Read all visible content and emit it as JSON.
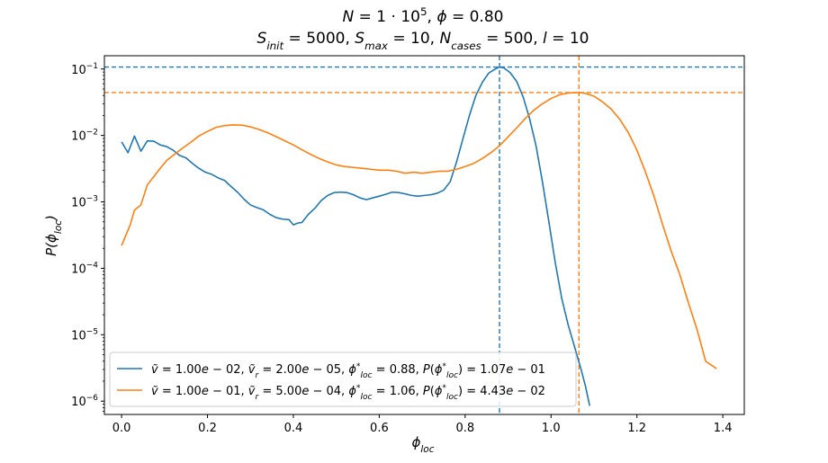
{
  "chart_data": {
    "type": "line",
    "title_line1": "N = 1 · 10⁵, ϕ = 0.80",
    "title_line2": "S_init = 5000, S_max = 10, N_cases = 500, l = 10",
    "xlabel": "ϕ_loc",
    "ylabel": "P(ϕ_loc)",
    "xlim": [
      -0.04,
      1.45
    ],
    "ylim_log10": [
      -6.2,
      -0.8
    ],
    "yscale": "log",
    "grid": false,
    "legend_position": "lower-left",
    "x_ticks": [
      0.0,
      0.2,
      0.4,
      0.6,
      0.8,
      1.0,
      1.2,
      1.4
    ],
    "x_tick_labels": [
      "0.0",
      "0.2",
      "0.4",
      "0.6",
      "0.8",
      "1.0",
      "1.2",
      "1.4"
    ],
    "y_ticks_log10": [
      -1,
      -2,
      -3,
      -4,
      -5,
      -6
    ],
    "y_tick_labels": [
      "10⁻¹",
      "10⁻²",
      "10⁻³",
      "10⁻⁴",
      "10⁻⁵",
      "10⁻⁶"
    ],
    "series": [
      {
        "name": "ṽ = 1.00e − 02, ṽr = 2.00e − 05, ϕ*loc = 0.88, P(ϕ*loc) = 1.07e − 01",
        "color": "#1f77b4",
        "peak_x": 0.88,
        "peak_y": 0.107,
        "points": [
          [
            0.0,
            0.008
          ],
          [
            0.015,
            0.0055
          ],
          [
            0.03,
            0.0098
          ],
          [
            0.045,
            0.0058
          ],
          [
            0.06,
            0.0083
          ],
          [
            0.075,
            0.0082
          ],
          [
            0.09,
            0.0072
          ],
          [
            0.105,
            0.0068
          ],
          [
            0.12,
            0.006
          ],
          [
            0.135,
            0.005
          ],
          [
            0.15,
            0.0046
          ],
          [
            0.165,
            0.0038
          ],
          [
            0.18,
            0.0032
          ],
          [
            0.195,
            0.0028
          ],
          [
            0.21,
            0.0026
          ],
          [
            0.225,
            0.0023
          ],
          [
            0.24,
            0.0021
          ],
          [
            0.255,
            0.0017
          ],
          [
            0.27,
            0.0014
          ],
          [
            0.285,
            0.0011
          ],
          [
            0.3,
            0.0009
          ],
          [
            0.315,
            0.00082
          ],
          [
            0.33,
            0.00076
          ],
          [
            0.345,
            0.00065
          ],
          [
            0.36,
            0.00058
          ],
          [
            0.375,
            0.00055
          ],
          [
            0.39,
            0.00054
          ],
          [
            0.4,
            0.00045
          ],
          [
            0.41,
            0.00048
          ],
          [
            0.42,
            0.00049
          ],
          [
            0.435,
            0.00065
          ],
          [
            0.45,
            0.0008
          ],
          [
            0.465,
            0.00105
          ],
          [
            0.48,
            0.00125
          ],
          [
            0.495,
            0.00138
          ],
          [
            0.51,
            0.0014
          ],
          [
            0.525,
            0.00138
          ],
          [
            0.54,
            0.00128
          ],
          [
            0.555,
            0.00115
          ],
          [
            0.57,
            0.00108
          ],
          [
            0.585,
            0.00115
          ],
          [
            0.6,
            0.00122
          ],
          [
            0.615,
            0.0013
          ],
          [
            0.63,
            0.0014
          ],
          [
            0.645,
            0.00138
          ],
          [
            0.66,
            0.00132
          ],
          [
            0.675,
            0.00125
          ],
          [
            0.69,
            0.00122
          ],
          [
            0.705,
            0.00125
          ],
          [
            0.72,
            0.00128
          ],
          [
            0.735,
            0.00135
          ],
          [
            0.75,
            0.0015
          ],
          [
            0.765,
            0.002
          ],
          [
            0.78,
            0.004
          ],
          [
            0.795,
            0.009
          ],
          [
            0.81,
            0.02
          ],
          [
            0.825,
            0.04
          ],
          [
            0.84,
            0.063
          ],
          [
            0.855,
            0.087
          ],
          [
            0.87,
            0.1
          ],
          [
            0.88,
            0.107
          ],
          [
            0.89,
            0.104
          ],
          [
            0.905,
            0.088
          ],
          [
            0.92,
            0.065
          ],
          [
            0.935,
            0.038
          ],
          [
            0.95,
            0.018
          ],
          [
            0.965,
            0.007
          ],
          [
            0.98,
            0.002
          ],
          [
            0.995,
            0.0005
          ],
          [
            1.01,
            0.00012
          ],
          [
            1.025,
            3.5e-05
          ],
          [
            1.04,
            1.4e-05
          ],
          [
            1.055,
            6.5e-06
          ],
          [
            1.07,
            3e-06
          ],
          [
            1.08,
            1.7e-06
          ],
          [
            1.09,
            8.5e-07
          ]
        ]
      },
      {
        "name": "ṽ = 1.00e − 01, ṽr = 5.00e − 04, ϕ*loc = 1.06, P(ϕ*loc) = 4.43e − 02",
        "color": "#ff7f0e",
        "peak_x": 1.065,
        "peak_y": 0.0443,
        "points": [
          [
            0.0,
            0.00022
          ],
          [
            0.02,
            0.00045
          ],
          [
            0.03,
            0.00075
          ],
          [
            0.045,
            0.0009
          ],
          [
            0.06,
            0.0018
          ],
          [
            0.075,
            0.0024
          ],
          [
            0.09,
            0.0032
          ],
          [
            0.105,
            0.0042
          ],
          [
            0.12,
            0.005
          ],
          [
            0.14,
            0.0063
          ],
          [
            0.16,
            0.0078
          ],
          [
            0.18,
            0.0098
          ],
          [
            0.2,
            0.0115
          ],
          [
            0.22,
            0.0132
          ],
          [
            0.24,
            0.0141
          ],
          [
            0.26,
            0.0144
          ],
          [
            0.28,
            0.0143
          ],
          [
            0.3,
            0.0135
          ],
          [
            0.32,
            0.0123
          ],
          [
            0.34,
            0.011
          ],
          [
            0.36,
            0.0096
          ],
          [
            0.38,
            0.0083
          ],
          [
            0.4,
            0.0072
          ],
          [
            0.42,
            0.0061
          ],
          [
            0.44,
            0.0052
          ],
          [
            0.46,
            0.0045
          ],
          [
            0.48,
            0.004
          ],
          [
            0.5,
            0.0036
          ],
          [
            0.52,
            0.0034
          ],
          [
            0.54,
            0.0033
          ],
          [
            0.56,
            0.0032
          ],
          [
            0.58,
            0.0031
          ],
          [
            0.6,
            0.003
          ],
          [
            0.62,
            0.003
          ],
          [
            0.64,
            0.0029
          ],
          [
            0.66,
            0.0027
          ],
          [
            0.68,
            0.0028
          ],
          [
            0.7,
            0.0027
          ],
          [
            0.72,
            0.0028
          ],
          [
            0.74,
            0.0029
          ],
          [
            0.76,
            0.0029
          ],
          [
            0.78,
            0.0031
          ],
          [
            0.8,
            0.0034
          ],
          [
            0.82,
            0.0038
          ],
          [
            0.84,
            0.0045
          ],
          [
            0.86,
            0.0055
          ],
          [
            0.88,
            0.007
          ],
          [
            0.9,
            0.0095
          ],
          [
            0.92,
            0.013
          ],
          [
            0.94,
            0.018
          ],
          [
            0.96,
            0.024
          ],
          [
            0.98,
            0.03
          ],
          [
            1.0,
            0.036
          ],
          [
            1.02,
            0.041
          ],
          [
            1.04,
            0.0435
          ],
          [
            1.065,
            0.0443
          ],
          [
            1.08,
            0.043
          ],
          [
            1.1,
            0.039
          ],
          [
            1.12,
            0.032
          ],
          [
            1.14,
            0.025
          ],
          [
            1.16,
            0.0175
          ],
          [
            1.18,
            0.011
          ],
          [
            1.2,
            0.006
          ],
          [
            1.22,
            0.0028
          ],
          [
            1.24,
            0.0012
          ],
          [
            1.26,
            0.00045
          ],
          [
            1.28,
            0.00018
          ],
          [
            1.3,
            8e-05
          ],
          [
            1.32,
            3e-05
          ],
          [
            1.34,
            1.2e-05
          ],
          [
            1.36,
            4e-06
          ],
          [
            1.385,
            3.1e-06
          ]
        ]
      }
    ]
  }
}
